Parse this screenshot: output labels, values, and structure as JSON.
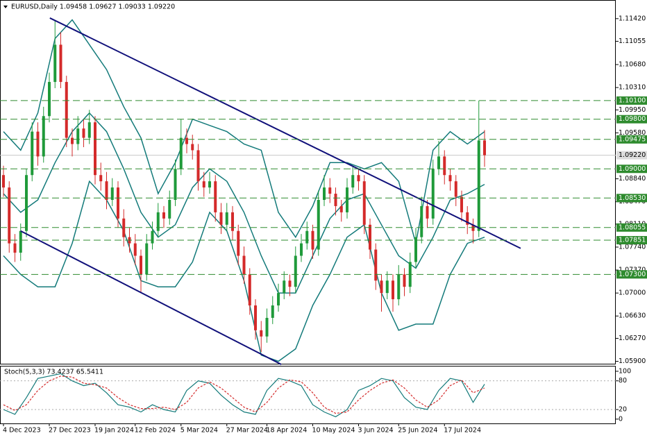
{
  "chart_data": [
    {
      "type": "candlestick",
      "title": "EURUSD,Daily  1.09458 1.09627 1.09033 1.09220",
      "up_color": "#1f9a3a",
      "down_color": "#d42a2a",
      "ohlc": [
        [
          1.089,
          1.0905,
          1.0855,
          1.087
        ],
        [
          1.087,
          1.088,
          1.0765,
          1.078
        ],
        [
          1.078,
          1.0795,
          1.075,
          1.0765
        ],
        [
          1.0765,
          1.0812,
          1.0752,
          1.08
        ],
        [
          1.08,
          1.09,
          1.079,
          1.089
        ],
        [
          1.089,
          1.0975,
          1.088,
          1.096
        ],
        [
          1.096,
          1.0975,
          1.0905,
          1.092
        ],
        [
          1.092,
          1.1,
          1.091,
          1.0985
        ],
        [
          1.0985,
          1.1055,
          1.0975,
          1.104
        ],
        [
          1.104,
          1.114,
          1.103,
          1.11
        ],
        [
          1.11,
          1.112,
          1.103,
          1.104
        ],
        [
          1.104,
          1.105,
          1.0935,
          1.095
        ],
        [
          1.095,
          1.0965,
          1.092,
          1.094
        ],
        [
          1.094,
          1.0985,
          1.093,
          1.0965
        ],
        [
          1.0965,
          1.098,
          1.0935,
          1.095
        ],
        [
          1.095,
          1.0995,
          1.094,
          1.0975
        ],
        [
          1.0975,
          1.0985,
          1.0875,
          1.089
        ],
        [
          1.089,
          1.091,
          1.0865,
          1.088
        ],
        [
          1.088,
          1.0895,
          1.0835,
          1.085
        ],
        [
          1.085,
          1.0885,
          1.084,
          1.087
        ],
        [
          1.087,
          1.088,
          1.0805,
          1.082
        ],
        [
          1.082,
          1.0835,
          1.0775,
          1.079
        ],
        [
          1.079,
          1.0805,
          1.0765,
          1.078
        ],
        [
          1.078,
          1.0795,
          1.0745,
          1.076
        ],
        [
          1.076,
          1.077,
          1.07,
          1.073
        ],
        [
          1.073,
          1.0795,
          1.072,
          1.078
        ],
        [
          1.078,
          1.0815,
          1.077,
          1.08
        ],
        [
          1.08,
          1.0845,
          1.079,
          1.083
        ],
        [
          1.083,
          1.084,
          1.0805,
          1.082
        ],
        [
          1.082,
          1.0865,
          1.081,
          1.085
        ],
        [
          1.085,
          1.0915,
          1.084,
          1.09
        ],
        [
          1.09,
          1.098,
          1.089,
          1.095
        ],
        [
          1.095,
          1.0965,
          1.0925,
          1.094
        ],
        [
          1.094,
          1.0955,
          1.0915,
          1.093
        ],
        [
          1.093,
          1.094,
          1.0865,
          1.088
        ],
        [
          1.088,
          1.0895,
          1.0855,
          1.087
        ],
        [
          1.087,
          1.0895,
          1.086,
          1.088
        ],
        [
          1.088,
          1.089,
          1.0815,
          1.083
        ],
        [
          1.083,
          1.0845,
          1.0795,
          1.081
        ],
        [
          1.081,
          1.0845,
          1.08,
          1.083
        ],
        [
          1.083,
          1.084,
          1.0785,
          1.08
        ],
        [
          1.08,
          1.081,
          1.0745,
          1.076
        ],
        [
          1.076,
          1.0775,
          1.0715,
          1.073
        ],
        [
          1.073,
          1.074,
          1.0665,
          1.068
        ],
        [
          1.068,
          1.069,
          1.0625,
          1.064
        ],
        [
          1.064,
          1.0655,
          1.0605,
          1.063
        ],
        [
          1.063,
          1.0675,
          1.062,
          1.066
        ],
        [
          1.066,
          1.0695,
          1.065,
          1.068
        ],
        [
          1.068,
          1.0715,
          1.067,
          1.07
        ],
        [
          1.07,
          1.0735,
          1.069,
          1.072
        ],
        [
          1.072,
          1.073,
          1.0695,
          1.071
        ],
        [
          1.071,
          1.0775,
          1.07,
          1.076
        ],
        [
          1.076,
          1.0795,
          1.075,
          1.078
        ],
        [
          1.078,
          1.0815,
          1.077,
          1.08
        ],
        [
          1.08,
          1.081,
          1.0755,
          1.077
        ],
        [
          1.077,
          1.0865,
          1.076,
          1.085
        ],
        [
          1.085,
          1.089,
          1.084,
          1.087
        ],
        [
          1.087,
          1.0885,
          1.0845,
          1.086
        ],
        [
          1.086,
          1.087,
          1.0825,
          1.084
        ],
        [
          1.084,
          1.085,
          1.0815,
          1.083
        ],
        [
          1.083,
          1.0885,
          1.082,
          1.087
        ],
        [
          1.087,
          1.0905,
          1.086,
          1.089
        ],
        [
          1.089,
          1.09,
          1.0865,
          1.088
        ],
        [
          1.088,
          1.089,
          1.0795,
          1.081
        ],
        [
          1.081,
          1.082,
          1.0755,
          1.077
        ],
        [
          1.077,
          1.078,
          1.0705,
          1.072
        ],
        [
          1.072,
          1.073,
          1.067,
          1.07
        ],
        [
          1.07,
          1.0735,
          1.069,
          1.072
        ],
        [
          1.072,
          1.073,
          1.067,
          1.069
        ],
        [
          1.069,
          1.0745,
          1.068,
          1.073
        ],
        [
          1.073,
          1.074,
          1.0695,
          1.071
        ],
        [
          1.071,
          1.0765,
          1.07,
          1.075
        ],
        [
          1.075,
          1.0805,
          1.074,
          1.079
        ],
        [
          1.079,
          1.0855,
          1.078,
          1.084
        ],
        [
          1.084,
          1.085,
          1.0805,
          1.082
        ],
        [
          1.082,
          1.0915,
          1.081,
          1.09
        ],
        [
          1.09,
          1.0945,
          1.089,
          1.092
        ],
        [
          1.092,
          1.093,
          1.0875,
          1.089
        ],
        [
          1.089,
          1.09,
          1.0865,
          1.088
        ],
        [
          1.088,
          1.089,
          1.084,
          1.0855
        ],
        [
          1.0855,
          1.0865,
          1.0815,
          1.083
        ],
        [
          1.083,
          1.084,
          1.0795,
          1.081
        ],
        [
          1.081,
          1.082,
          1.078,
          1.08
        ],
        [
          1.08,
          1.101,
          1.079,
          1.09458
        ],
        [
          1.09458,
          1.09627,
          1.09033,
          1.0922
        ]
      ],
      "bands": {
        "color": "#137a7a",
        "x": [
          0,
          3,
          6,
          9,
          12,
          15,
          18,
          21,
          24,
          27,
          30,
          33,
          36,
          39,
          42,
          45,
          48,
          51,
          54,
          57,
          60,
          63,
          66,
          69,
          72,
          75,
          78,
          81,
          84
        ],
        "upper": [
          1.096,
          1.093,
          1.099,
          1.111,
          1.114,
          1.11,
          1.106,
          1.1,
          1.095,
          1.086,
          1.091,
          1.098,
          1.097,
          1.096,
          1.094,
          1.093,
          1.083,
          1.079,
          1.084,
          1.091,
          1.091,
          1.09,
          1.091,
          1.088,
          1.078,
          1.093,
          1.096,
          1.094,
          1.096
        ],
        "middle": [
          1.086,
          1.083,
          1.085,
          1.091,
          1.096,
          1.099,
          1.096,
          1.09,
          1.083,
          1.079,
          1.081,
          1.087,
          1.09,
          1.088,
          1.083,
          1.076,
          1.07,
          1.07,
          1.076,
          1.082,
          1.085,
          1.086,
          1.081,
          1.076,
          1.074,
          1.079,
          1.085,
          1.086,
          1.0875
        ],
        "lower": [
          1.076,
          1.073,
          1.071,
          1.071,
          1.078,
          1.088,
          1.085,
          1.08,
          1.072,
          1.071,
          1.071,
          1.075,
          1.083,
          1.08,
          1.072,
          1.06,
          1.059,
          1.061,
          1.068,
          1.073,
          1.079,
          1.081,
          1.07,
          1.064,
          1.065,
          1.065,
          1.073,
          1.078,
          1.079
        ]
      },
      "trendlines": {
        "color": "#10107a",
        "lines": [
          {
            "x": [
              8.1,
              90.3
            ],
            "y": [
              1.1143,
              1.0772
            ]
          },
          {
            "x": [
              3,
              48.5
            ],
            "y": [
              1.08,
              1.0585
            ]
          }
        ]
      },
      "levels": {
        "color": "#2e8b2e",
        "items": [
          {
            "value": 1.101,
            "label": "1.10100"
          },
          {
            "value": 1.098,
            "label": "1.09800"
          },
          {
            "value": 1.09475,
            "label": "1.09475"
          },
          {
            "value": 1.09,
            "label": "1.09000"
          },
          {
            "value": 1.0853,
            "label": "1.08530"
          },
          {
            "value": 1.08055,
            "label": "1.08055"
          },
          {
            "value": 1.07851,
            "label": "1.07851"
          },
          {
            "value": 1.073,
            "label": "1.07300"
          }
        ]
      },
      "current_price": {
        "value": 1.0922,
        "label": "1.09220"
      },
      "ylim": [
        1.0585,
        1.1172
      ],
      "yticks": [
        {
          "value": 1.1142,
          "label": "1.11420"
        },
        {
          "value": 1.11055,
          "label": "1.11055"
        },
        {
          "value": 1.1068,
          "label": "1.10680"
        },
        {
          "value": 1.1031,
          "label": "1.10310"
        },
        {
          "value": 1.0995,
          "label": "1.09950"
        },
        {
          "value": 1.0958,
          "label": "1.09580"
        },
        {
          "value": 1.0884,
          "label": "1.08840"
        },
        {
          "value": 1.0847,
          "label": "1.08470"
        },
        {
          "value": 1.0811,
          "label": "1.08110"
        },
        {
          "value": 1.0774,
          "label": "1.07740"
        },
        {
          "value": 1.0737,
          "label": "1.07370"
        },
        {
          "value": 1.07,
          "label": "1.07000"
        },
        {
          "value": 1.0663,
          "label": "1.06630"
        },
        {
          "value": 1.0627,
          "label": "1.06270"
        },
        {
          "value": 1.059,
          "label": "1.05900"
        }
      ],
      "xticks": [
        {
          "value": 0,
          "label": "4 Dec 2023"
        },
        {
          "value": 8,
          "label": "27 Dec 2023"
        },
        {
          "value": 16,
          "label": "19 Jan 2024"
        },
        {
          "value": 23,
          "label": "12 Feb 2024"
        },
        {
          "value": 31,
          "label": "5 Mar 2024"
        },
        {
          "value": 39,
          "label": "27 Mar 2024"
        },
        {
          "value": 46,
          "label": "18 Apr 2024"
        },
        {
          "value": 54,
          "label": "10 May 2024"
        },
        {
          "value": 62,
          "label": "3 Jun 2024"
        },
        {
          "value": 69,
          "label": "25 Jun 2024"
        },
        {
          "value": 77,
          "label": "17 Jul 2024"
        }
      ]
    },
    {
      "type": "line",
      "title": "Stoch(5,3,3) 73.4237 65.5411",
      "x": [
        0,
        2,
        4,
        6,
        8,
        10,
        12,
        14,
        16,
        18,
        20,
        22,
        24,
        26,
        28,
        30,
        32,
        34,
        36,
        38,
        40,
        42,
        44,
        46,
        48,
        50,
        52,
        54,
        56,
        58,
        60,
        62,
        64,
        66,
        68,
        70,
        72,
        74,
        76,
        78,
        80,
        82,
        84
      ],
      "series": [
        {
          "color": "#137a7a",
          "values": [
            20,
            10,
            45,
            85,
            90,
            95,
            80,
            70,
            75,
            55,
            30,
            25,
            15,
            30,
            20,
            15,
            60,
            80,
            75,
            50,
            30,
            15,
            10,
            60,
            85,
            80,
            70,
            30,
            15,
            5,
            20,
            60,
            70,
            85,
            80,
            45,
            25,
            20,
            60,
            85,
            80,
            35,
            73
          ]
        },
        {
          "color": "#d42a2a",
          "dashed": true,
          "values": [
            30,
            18,
            30,
            60,
            80,
            90,
            88,
            75,
            72,
            65,
            45,
            30,
            22,
            22,
            25,
            20,
            35,
            65,
            78,
            65,
            45,
            25,
            15,
            35,
            65,
            82,
            78,
            55,
            25,
            12,
            15,
            40,
            60,
            75,
            82,
            65,
            40,
            25,
            40,
            70,
            82,
            55,
            65
          ]
        }
      ],
      "levels": [
        80,
        20
      ],
      "ylim": [
        -9,
        110
      ],
      "yticks": [
        100,
        80,
        20,
        0
      ]
    }
  ]
}
